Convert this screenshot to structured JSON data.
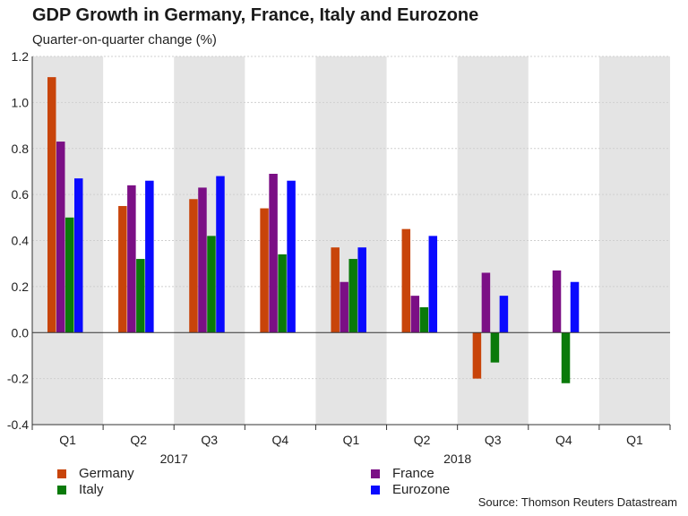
{
  "chart_data": {
    "type": "bar",
    "title": "GDP Growth in Germany, France, Italy and Eurozone",
    "subtitle": "Quarter-on-quarter change (%)",
    "categories": [
      "Q1",
      "Q2",
      "Q3",
      "Q4",
      "Q1",
      "Q2",
      "Q3",
      "Q4",
      "Q1"
    ],
    "year_labels": [
      {
        "label": "2017",
        "first_index": 0,
        "last_index": 3
      },
      {
        "label": "2018",
        "first_index": 4,
        "last_index": 7
      }
    ],
    "series": [
      {
        "name": "Germany",
        "color": "#c8440a",
        "values": [
          1.11,
          0.55,
          0.58,
          0.54,
          0.37,
          0.45,
          -0.2,
          null,
          null
        ]
      },
      {
        "name": "France",
        "color": "#7b0f85",
        "values": [
          0.83,
          0.64,
          0.63,
          0.69,
          0.22,
          0.16,
          0.26,
          0.27,
          null
        ]
      },
      {
        "name": "Italy",
        "color": "#0a7a0a",
        "values": [
          0.5,
          0.32,
          0.42,
          0.34,
          0.32,
          0.11,
          -0.13,
          -0.22,
          null
        ]
      },
      {
        "name": "Eurozone",
        "color": "#0a0aff",
        "values": [
          0.67,
          0.66,
          0.68,
          0.66,
          0.37,
          0.42,
          0.16,
          0.22,
          null
        ]
      }
    ],
    "shaded_bands": [
      0,
      2,
      4,
      6,
      8
    ],
    "ylim": [
      -0.4,
      1.2
    ],
    "yticks": [
      "1.2",
      "1.0",
      "0.8",
      "0.6",
      "0.4",
      "0.2",
      "0.0",
      "-0.2",
      "-0.4"
    ],
    "ytick_values": [
      1.2,
      1.0,
      0.8,
      0.6,
      0.4,
      0.2,
      0.0,
      -0.2,
      -0.4
    ],
    "grid": true,
    "legend_position": "bottom"
  },
  "source": "Source: Thomson Reuters Datastream",
  "colors": {
    "band": "#e4e4e4",
    "grid": "#cfcfcf",
    "axis": "#333333"
  }
}
